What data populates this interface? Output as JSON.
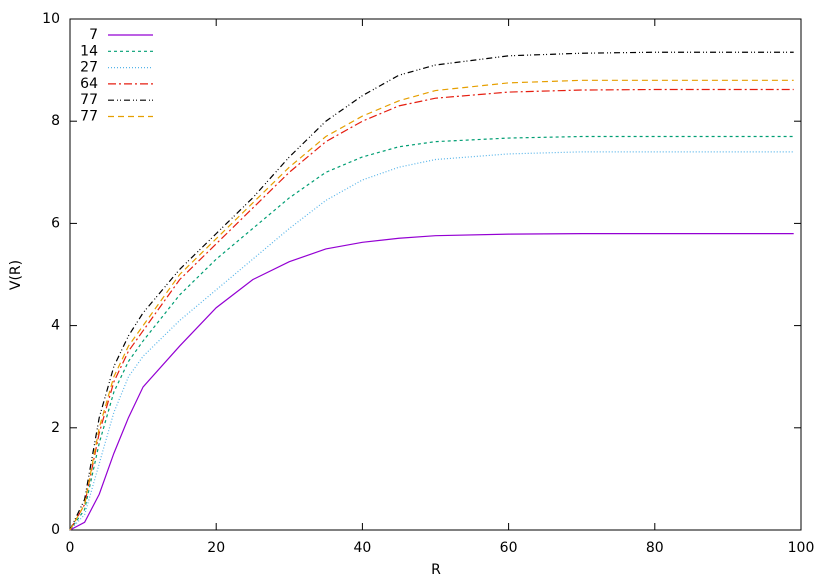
{
  "chart_data": {
    "type": "line",
    "xlabel": "R",
    "ylabel": "V(R)",
    "x": [
      0,
      2,
      4,
      6,
      8,
      10,
      15,
      20,
      25,
      30,
      35,
      40,
      45,
      50,
      60,
      70,
      80,
      90,
      99
    ],
    "xlim": [
      0,
      100
    ],
    "xticks": [
      0,
      20,
      40,
      60,
      80,
      100
    ],
    "ylim": [
      0,
      10
    ],
    "yticks": [
      0,
      2,
      4,
      6,
      8,
      10
    ],
    "series": [
      {
        "name": "7",
        "color": "#9400d3",
        "dash": "solid",
        "values": [
          0,
          0.15,
          0.7,
          1.5,
          2.2,
          2.8,
          3.6,
          4.35,
          4.9,
          5.25,
          5.5,
          5.63,
          5.71,
          5.76,
          5.79,
          5.8,
          5.8,
          5.8,
          5.8
        ]
      },
      {
        "name": "14",
        "color": "#009e73",
        "dash": "dashed",
        "values": [
          0,
          0.4,
          1.7,
          2.7,
          3.3,
          3.7,
          4.6,
          5.3,
          5.9,
          6.5,
          7.0,
          7.3,
          7.5,
          7.6,
          7.67,
          7.7,
          7.7,
          7.7,
          7.7
        ]
      },
      {
        "name": "27",
        "color": "#56b4e9",
        "dash": "dotted",
        "values": [
          0,
          0.3,
          1.3,
          2.3,
          3.0,
          3.4,
          4.1,
          4.7,
          5.3,
          5.9,
          6.45,
          6.85,
          7.1,
          7.25,
          7.36,
          7.4,
          7.4,
          7.4,
          7.4
        ]
      },
      {
        "name": "64",
        "color": "#e51e10",
        "dash": "dashdot",
        "values": [
          0,
          0.5,
          1.9,
          2.9,
          3.5,
          3.9,
          4.9,
          5.6,
          6.3,
          7.0,
          7.6,
          8.0,
          8.3,
          8.45,
          8.57,
          8.61,
          8.62,
          8.62,
          8.62
        ]
      },
      {
        "name": "77",
        "color": "#000000",
        "dash": "dashdotdot",
        "values": [
          0,
          0.6,
          2.2,
          3.2,
          3.8,
          4.25,
          5.1,
          5.8,
          6.5,
          7.3,
          8.0,
          8.5,
          8.9,
          9.1,
          9.28,
          9.33,
          9.35,
          9.35,
          9.35
        ]
      },
      {
        "name": "77",
        "color": "#e69f00",
        "dash": "longdash",
        "values": [
          0,
          0.5,
          2.0,
          3.0,
          3.6,
          4.0,
          5.0,
          5.7,
          6.4,
          7.1,
          7.7,
          8.1,
          8.4,
          8.6,
          8.75,
          8.8,
          8.8,
          8.8,
          8.8
        ]
      }
    ]
  }
}
